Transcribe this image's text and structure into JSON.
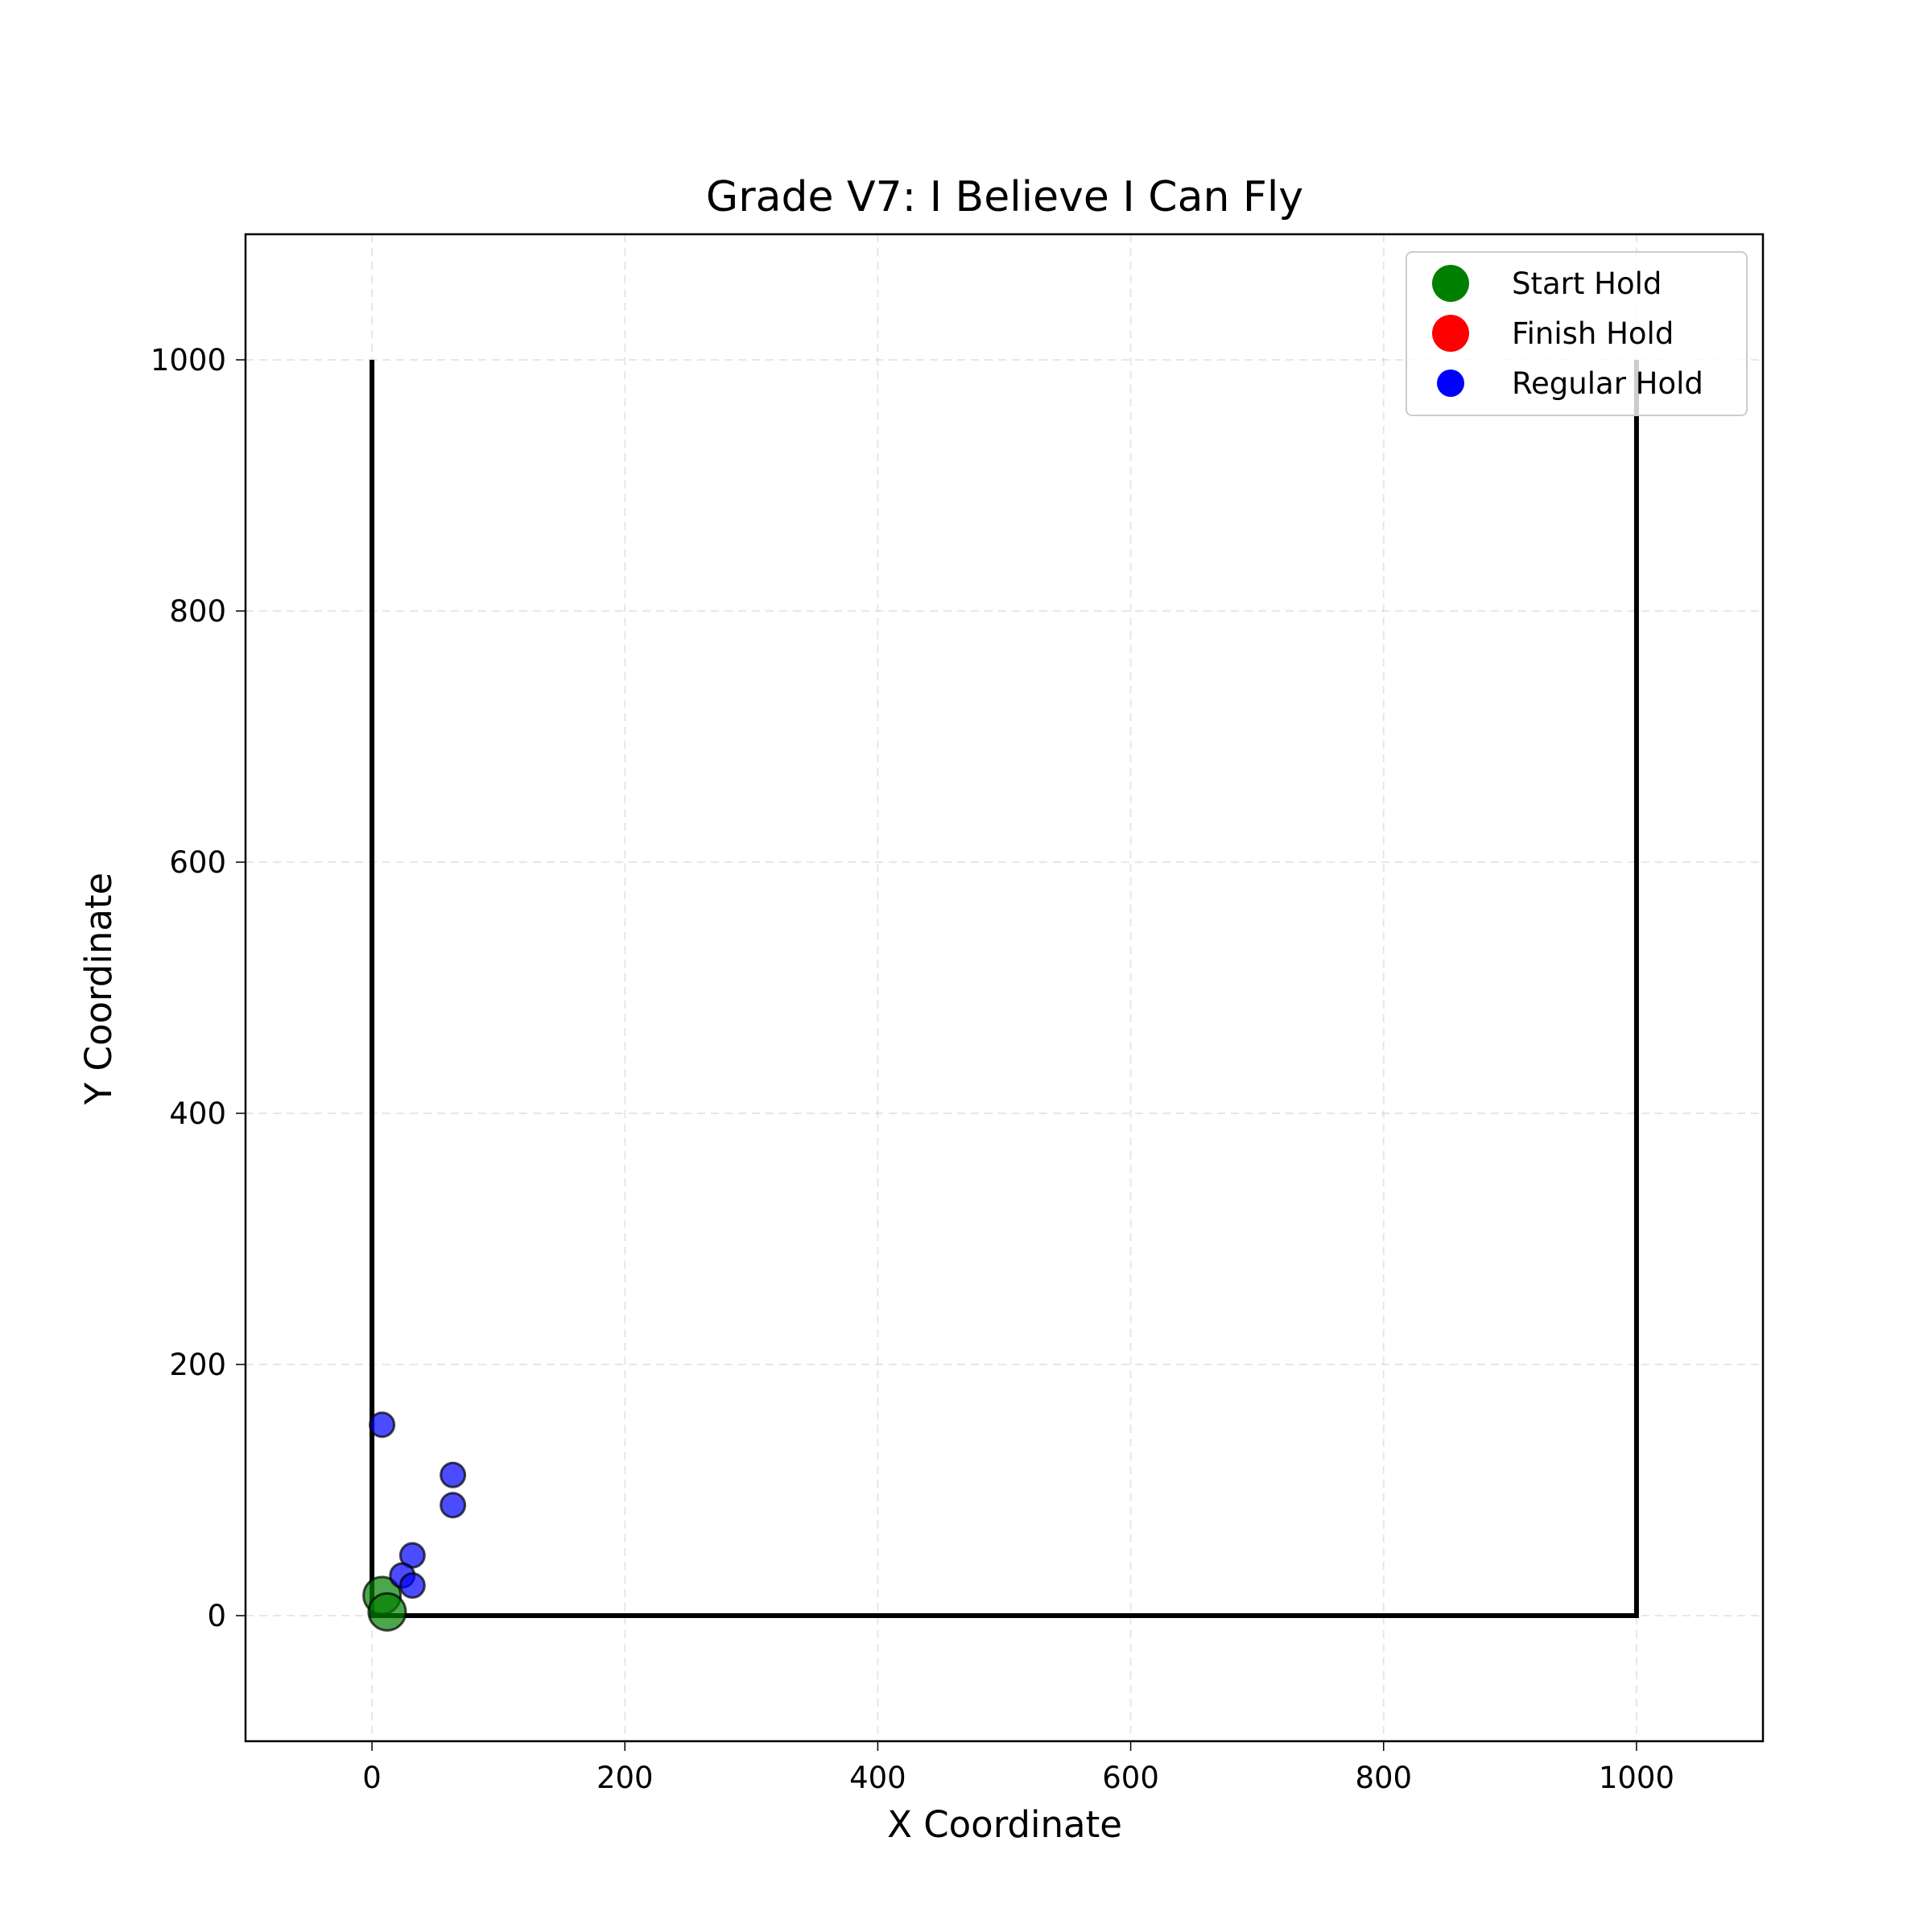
{
  "chart_data": {
    "type": "scatter",
    "title": "Grade V7: I Believe I Can Fly",
    "xlabel": "X Coordinate",
    "ylabel": "Y Coordinate",
    "xlim": [
      -100,
      1100
    ],
    "ylim": [
      -100,
      1100
    ],
    "xticks": [
      0,
      200,
      400,
      600,
      800,
      1000
    ],
    "yticks": [
      0,
      200,
      400,
      600,
      800,
      1000
    ],
    "grid": true,
    "legend_position": "top-right",
    "wall_outline": [
      [
        0,
        1000
      ],
      [
        0,
        0
      ],
      [
        1000,
        0
      ],
      [
        1000,
        1000
      ]
    ],
    "series": [
      {
        "name": "Start Hold",
        "color": "#008000",
        "points": [
          [
            8,
            16
          ],
          [
            12,
            3
          ]
        ]
      },
      {
        "name": "Finish Hold",
        "color": "#ff0000",
        "points": []
      },
      {
        "name": "Regular Hold",
        "color": "#0000ff",
        "points": [
          [
            8,
            152
          ],
          [
            64,
            112
          ],
          [
            64,
            88
          ],
          [
            32,
            48
          ],
          [
            24,
            32
          ],
          [
            32,
            24
          ]
        ]
      }
    ]
  }
}
